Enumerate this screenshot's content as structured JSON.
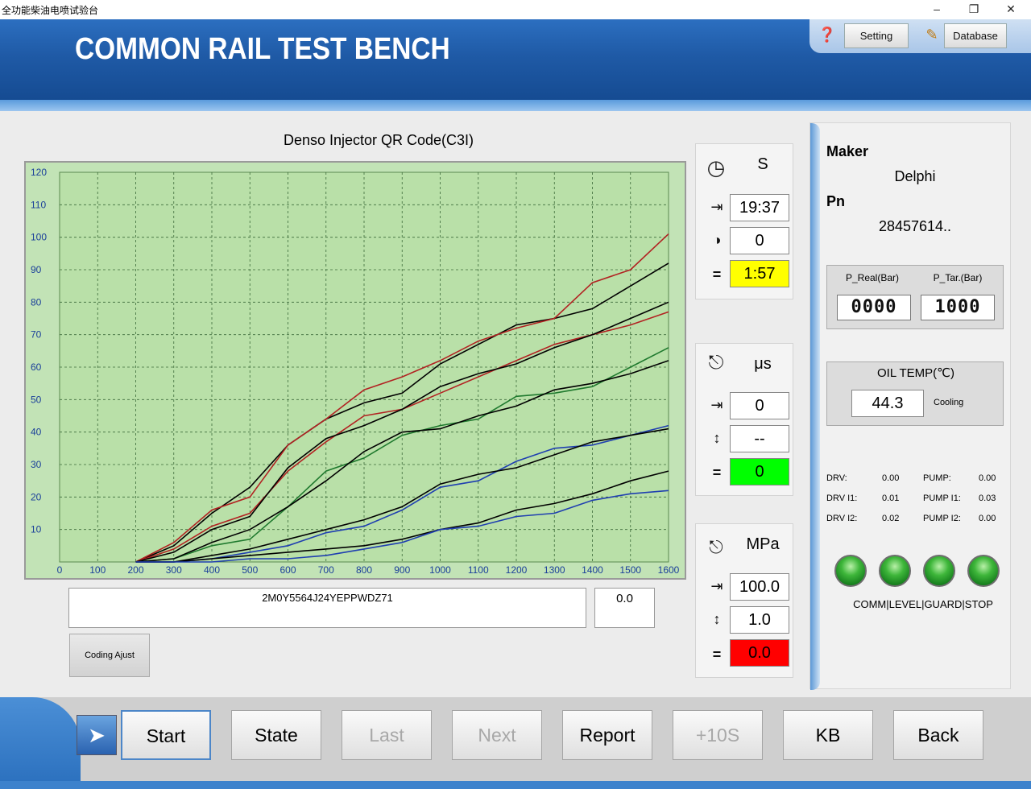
{
  "window": {
    "title": "全功能柴油电喷试验台"
  },
  "header": {
    "brand": "COMMON RAIL TEST BENCH",
    "setting_label": "Setting",
    "database_label": "Database"
  },
  "chart": {
    "title": "Denso Injector QR Code(C3I)",
    "qr_code": "2M0Y5564J24YEPPWDZ71",
    "qr_value": "0.0",
    "coding_button": "Coding Ajust"
  },
  "chart_data": {
    "type": "line",
    "title": "Denso Injector QR Code(C3I)",
    "xlabel": "",
    "ylabel": "",
    "xlim": [
      0,
      1600
    ],
    "ylim": [
      0,
      120
    ],
    "grid": true,
    "x_ticks": [
      0,
      100,
      200,
      300,
      400,
      500,
      600,
      700,
      800,
      900,
      1000,
      1100,
      1200,
      1300,
      1400,
      1500,
      1600
    ],
    "y_ticks": [
      10,
      20,
      30,
      40,
      50,
      60,
      70,
      80,
      90,
      100,
      110,
      120
    ],
    "series": [
      {
        "color": "#000000",
        "x": [
          200,
          300,
          400,
          500,
          600,
          700,
          800,
          900,
          1000,
          1100,
          1200,
          1300,
          1400,
          1500,
          1600
        ],
        "y": [
          0,
          5,
          15,
          23,
          36,
          44,
          49,
          52,
          61,
          67,
          73,
          75,
          78,
          85,
          92
        ]
      },
      {
        "color": "#b22222",
        "x": [
          200,
          300,
          400,
          500,
          600,
          700,
          800,
          900,
          1000,
          1100,
          1200,
          1300,
          1400,
          1500,
          1600
        ],
        "y": [
          0,
          6,
          16,
          20,
          36,
          44,
          53,
          57,
          62,
          68,
          72,
          75,
          86,
          90,
          101
        ]
      },
      {
        "color": "#b22222",
        "x": [
          200,
          300,
          400,
          500,
          600,
          700,
          800,
          900,
          1000,
          1100,
          1200,
          1300,
          1400,
          1500,
          1600
        ],
        "y": [
          0,
          4,
          11,
          15,
          28,
          37,
          45,
          47,
          52,
          57,
          62,
          67,
          70,
          73,
          77
        ]
      },
      {
        "color": "#000000",
        "x": [
          200,
          300,
          400,
          500,
          600,
          700,
          800,
          900,
          1000,
          1100,
          1200,
          1300,
          1400,
          1500,
          1600
        ],
        "y": [
          0,
          3,
          10,
          14,
          29,
          38,
          42,
          47,
          54,
          58,
          61,
          66,
          70,
          75,
          80
        ]
      },
      {
        "color": "#1f7a2e",
        "x": [
          200,
          300,
          400,
          500,
          600,
          700,
          800,
          900,
          1000,
          1100,
          1200,
          1300,
          1400,
          1500,
          1600
        ],
        "y": [
          0,
          1,
          5,
          7,
          17,
          28,
          32,
          39,
          42,
          44,
          51,
          52,
          54,
          60,
          66
        ]
      },
      {
        "color": "#000000",
        "x": [
          200,
          300,
          400,
          500,
          600,
          700,
          800,
          900,
          1000,
          1100,
          1200,
          1300,
          1400,
          1500,
          1600
        ],
        "y": [
          0,
          1,
          6,
          10,
          17,
          25,
          34,
          40,
          41,
          45,
          48,
          53,
          55,
          58,
          62
        ]
      },
      {
        "color": "#1f3fb0",
        "x": [
          200,
          300,
          400,
          500,
          600,
          700,
          800,
          900,
          1000,
          1100,
          1200,
          1300,
          1400,
          1500,
          1600
        ],
        "y": [
          0,
          0,
          1,
          3,
          5,
          9,
          11,
          16,
          23,
          25,
          31,
          35,
          36,
          39,
          42
        ]
      },
      {
        "color": "#000000",
        "x": [
          200,
          300,
          400,
          500,
          600,
          700,
          800,
          900,
          1000,
          1100,
          1200,
          1300,
          1400,
          1500,
          1600
        ],
        "y": [
          0,
          0,
          2,
          4,
          7,
          10,
          13,
          17,
          24,
          27,
          29,
          33,
          37,
          39,
          41
        ]
      },
      {
        "color": "#000000",
        "x": [
          200,
          300,
          400,
          500,
          600,
          700,
          800,
          900,
          1000,
          1100,
          1200,
          1300,
          1400,
          1500,
          1600
        ],
        "y": [
          0,
          0,
          1,
          2,
          3,
          4,
          5,
          7,
          10,
          12,
          16,
          18,
          21,
          25,
          28
        ]
      },
      {
        "color": "#1f3fb0",
        "x": [
          200,
          300,
          400,
          500,
          600,
          700,
          800,
          900,
          1000,
          1100,
          1200,
          1300,
          1400,
          1500,
          1600
        ],
        "y": [
          0,
          0,
          0,
          1,
          1,
          2,
          4,
          6,
          10,
          11,
          14,
          15,
          19,
          21,
          22
        ]
      }
    ]
  },
  "time_panel": {
    "unit": "S",
    "target": "19:37",
    "count": "0",
    "remain": "1:57",
    "remain_color": "#ffff00"
  },
  "pulse_panel": {
    "unit": "μs",
    "target": "0",
    "measured": "--",
    "result": "0",
    "result_color": "#00ff00"
  },
  "pressure_panel": {
    "unit": "MPa",
    "target": "100.0",
    "tolerance": "1.0",
    "actual": "0.0",
    "actual_color": "#ff0000"
  },
  "right": {
    "maker_label": "Maker",
    "maker_value": "Delphi",
    "pn_label": "Pn",
    "pn_value": "28457614..",
    "p_real_label": "P_Real(Bar)",
    "p_tar_label": "P_Tar.(Bar)",
    "p_real_value": "0000",
    "p_tar_value": "1000",
    "oil_temp_label": "OIL TEMP(℃)",
    "oil_temp_value": "44.3",
    "cooling_label": "Cooling",
    "stats": {
      "drv_label": "DRV:",
      "drv": "0.00",
      "drv_i1_label": "DRV I1:",
      "drv_i1": "0.01",
      "drv_i2_label": "DRV I2:",
      "drv_i2": "0.02",
      "pump_label": "PUMP:",
      "pump": "0.00",
      "pump_i1_label": "PUMP I1:",
      "pump_i1": "0.03",
      "pump_i2_label": "PUMP I2:",
      "pump_i2": "0.00"
    },
    "led_caption": "COMM|LEVEL|GUARD|STOP"
  },
  "bottom": {
    "buttons": [
      {
        "label": "Start",
        "state": "active"
      },
      {
        "label": "State",
        "state": "normal"
      },
      {
        "label": "Last",
        "state": "disabled"
      },
      {
        "label": "Next",
        "state": "disabled"
      },
      {
        "label": "Report",
        "state": "normal"
      },
      {
        "label": "+10S",
        "state": "disabled"
      },
      {
        "label": "KB",
        "state": "normal"
      },
      {
        "label": "Back",
        "state": "normal"
      }
    ]
  }
}
